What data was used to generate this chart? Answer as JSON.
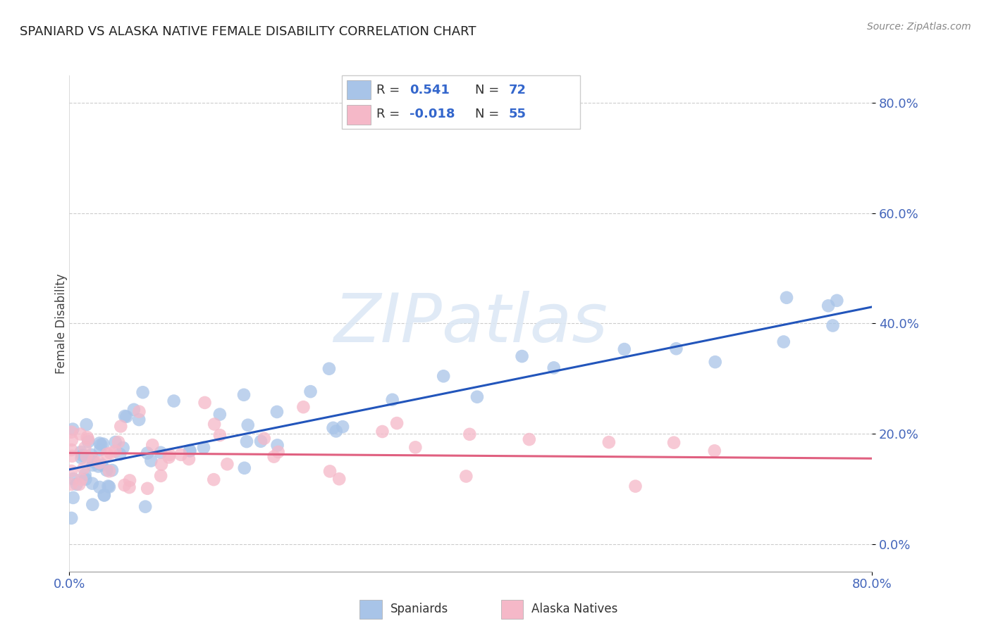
{
  "title": "SPANIARD VS ALASKA NATIVE FEMALE DISABILITY CORRELATION CHART",
  "source": "Source: ZipAtlas.com",
  "ylabel": "Female Disability",
  "legend_spaniards": "Spaniards",
  "legend_alaska": "Alaska Natives",
  "r_spaniard": "0.541",
  "n_spaniard": "72",
  "r_alaska": "-0.018",
  "n_alaska": "55",
  "spaniard_color": "#a8c4e8",
  "alaska_color": "#f5b8c8",
  "spaniard_line_color": "#2255bb",
  "alaska_line_color": "#e06080",
  "background_color": "#ffffff",
  "watermark_text": "ZIPatlas",
  "watermark_color": "#dde8f5",
  "ytick_values": [
    0,
    20,
    40,
    60,
    80
  ],
  "xlim": [
    0,
    80
  ],
  "ylim": [
    -5,
    85
  ],
  "sp_line_y0": 13.5,
  "sp_line_y1": 43.0,
  "ak_line_y0": 16.5,
  "ak_line_y1": 15.5
}
